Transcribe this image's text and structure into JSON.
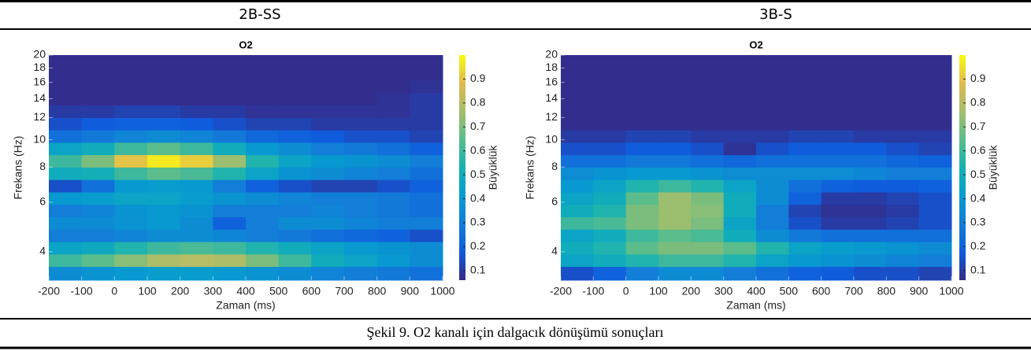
{
  "caption": "Şekil 9. O2 kanalı için dalgacık dönüşümü sonuçları",
  "chart_data": [
    {
      "type": "heatmap",
      "panel_label": "2B-SS",
      "title": "O2",
      "xlabel": "Zaman (ms)",
      "ylabel": "Frekans (Hz)",
      "colorbar_label": "Büyüklük",
      "colormap": "parula",
      "ylog": true,
      "xlim": [
        -200,
        1000
      ],
      "xticks": [
        -200,
        -100,
        0,
        100,
        200,
        300,
        400,
        500,
        600,
        700,
        800,
        900,
        1000
      ],
      "ylim": [
        3.17,
        20
      ],
      "yticks": [
        4,
        6,
        8,
        10,
        12,
        14,
        16,
        18,
        20
      ],
      "clim": [
        0.06,
        1
      ],
      "cticks": [
        0.1,
        0.2,
        0.3,
        0.4,
        0.5,
        0.6,
        0.7,
        0.8,
        0.9
      ],
      "x": [
        -150,
        -50,
        50,
        150,
        250,
        350,
        450,
        550,
        650,
        750,
        850,
        950
      ],
      "y": [
        3.37,
        3.73,
        4.13,
        4.57,
        5.06,
        5.6,
        6.2,
        6.86,
        7.6,
        8.41,
        9.31,
        10.3,
        11.4,
        12.6,
        14,
        15.5,
        17.1,
        19
      ],
      "z": [
        [
          0.35,
          0.38,
          0.4,
          0.42,
          0.42,
          0.4,
          0.38,
          0.35,
          0.32,
          0.3,
          0.28,
          0.25
        ],
        [
          0.6,
          0.65,
          0.72,
          0.78,
          0.8,
          0.78,
          0.7,
          0.6,
          0.5,
          0.45,
          0.4,
          0.35
        ],
        [
          0.45,
          0.48,
          0.55,
          0.6,
          0.62,
          0.6,
          0.55,
          0.5,
          0.45,
          0.4,
          0.38,
          0.35
        ],
        [
          0.3,
          0.3,
          0.32,
          0.35,
          0.35,
          0.33,
          0.3,
          0.28,
          0.25,
          0.22,
          0.2,
          0.15
        ],
        [
          0.35,
          0.35,
          0.38,
          0.4,
          0.35,
          0.2,
          0.3,
          0.35,
          0.35,
          0.32,
          0.3,
          0.3
        ],
        [
          0.3,
          0.32,
          0.38,
          0.4,
          0.38,
          0.3,
          0.3,
          0.3,
          0.32,
          0.3,
          0.28,
          0.25
        ],
        [
          0.4,
          0.42,
          0.45,
          0.45,
          0.42,
          0.38,
          0.35,
          0.32,
          0.3,
          0.3,
          0.28,
          0.25
        ],
        [
          0.15,
          0.25,
          0.4,
          0.42,
          0.4,
          0.3,
          0.2,
          0.15,
          0.12,
          0.12,
          0.15,
          0.2
        ],
        [
          0.5,
          0.52,
          0.6,
          0.65,
          0.62,
          0.55,
          0.45,
          0.38,
          0.35,
          0.32,
          0.3,
          0.25
        ],
        [
          0.6,
          0.7,
          0.9,
          0.97,
          0.92,
          0.75,
          0.55,
          0.45,
          0.4,
          0.38,
          0.35,
          0.3
        ],
        [
          0.45,
          0.5,
          0.6,
          0.65,
          0.6,
          0.5,
          0.4,
          0.35,
          0.3,
          0.28,
          0.25,
          0.2
        ],
        [
          0.25,
          0.28,
          0.32,
          0.35,
          0.32,
          0.28,
          0.22,
          0.2,
          0.18,
          0.15,
          0.15,
          0.12
        ],
        [
          0.15,
          0.18,
          0.2,
          0.2,
          0.18,
          0.15,
          0.12,
          0.12,
          0.1,
          0.1,
          0.1,
          0.1
        ],
        [
          0.1,
          0.1,
          0.12,
          0.12,
          0.1,
          0.1,
          0.08,
          0.08,
          0.08,
          0.08,
          0.08,
          0.1
        ],
        [
          0.07,
          0.07,
          0.07,
          0.07,
          0.07,
          0.07,
          0.07,
          0.07,
          0.07,
          0.07,
          0.08,
          0.1
        ],
        [
          0.07,
          0.07,
          0.07,
          0.07,
          0.07,
          0.07,
          0.07,
          0.07,
          0.07,
          0.07,
          0.07,
          0.08
        ],
        [
          0.07,
          0.07,
          0.07,
          0.07,
          0.07,
          0.07,
          0.07,
          0.07,
          0.07,
          0.07,
          0.07,
          0.07
        ],
        [
          0.07,
          0.07,
          0.07,
          0.07,
          0.07,
          0.07,
          0.07,
          0.07,
          0.07,
          0.07,
          0.07,
          0.07
        ]
      ]
    },
    {
      "type": "heatmap",
      "panel_label": "3B-S",
      "title": "O2",
      "xlabel": "Zaman (ms)",
      "ylabel": "Frekans (Hz)",
      "colorbar_label": "Büyüklük",
      "colormap": "parula",
      "ylog": true,
      "xlim": [
        -200,
        1000
      ],
      "xticks": [
        -200,
        -100,
        0,
        100,
        200,
        300,
        400,
        500,
        600,
        700,
        800,
        900,
        1000
      ],
      "ylim": [
        3.17,
        20
      ],
      "yticks": [
        4,
        6,
        8,
        10,
        12,
        14,
        16,
        18,
        20
      ],
      "clim": [
        0.06,
        1
      ],
      "cticks": [
        0.1,
        0.2,
        0.3,
        0.4,
        0.5,
        0.6,
        0.7,
        0.8,
        0.9
      ],
      "x": [
        -150,
        -50,
        50,
        150,
        250,
        350,
        450,
        550,
        650,
        750,
        850,
        950
      ],
      "y": [
        3.37,
        3.73,
        4.13,
        4.57,
        5.06,
        5.6,
        6.2,
        6.86,
        7.6,
        8.41,
        9.31,
        10.3,
        11.4,
        12.6,
        14,
        15.5,
        17.1,
        19
      ],
      "z": [
        [
          0.15,
          0.2,
          0.3,
          0.35,
          0.35,
          0.3,
          0.25,
          0.2,
          0.18,
          0.15,
          0.15,
          0.12
        ],
        [
          0.45,
          0.5,
          0.55,
          0.6,
          0.6,
          0.55,
          0.45,
          0.4,
          0.38,
          0.35,
          0.32,
          0.3
        ],
        [
          0.5,
          0.55,
          0.65,
          0.7,
          0.7,
          0.65,
          0.55,
          0.45,
          0.42,
          0.4,
          0.38,
          0.35
        ],
        [
          0.45,
          0.5,
          0.6,
          0.65,
          0.62,
          0.5,
          0.35,
          0.28,
          0.25,
          0.25,
          0.25,
          0.25
        ],
        [
          0.6,
          0.62,
          0.7,
          0.75,
          0.7,
          0.45,
          0.3,
          0.15,
          0.1,
          0.1,
          0.12,
          0.15
        ],
        [
          0.5,
          0.55,
          0.7,
          0.75,
          0.72,
          0.5,
          0.3,
          0.12,
          0.08,
          0.08,
          0.1,
          0.15
        ],
        [
          0.45,
          0.5,
          0.65,
          0.75,
          0.7,
          0.5,
          0.35,
          0.2,
          0.1,
          0.1,
          0.12,
          0.15
        ],
        [
          0.4,
          0.45,
          0.55,
          0.6,
          0.55,
          0.45,
          0.35,
          0.25,
          0.2,
          0.18,
          0.18,
          0.2
        ],
        [
          0.35,
          0.38,
          0.4,
          0.4,
          0.38,
          0.35,
          0.35,
          0.35,
          0.35,
          0.33,
          0.3,
          0.3
        ],
        [
          0.25,
          0.25,
          0.28,
          0.28,
          0.25,
          0.22,
          0.25,
          0.25,
          0.25,
          0.25,
          0.22,
          0.2
        ],
        [
          0.15,
          0.15,
          0.18,
          0.18,
          0.15,
          0.08,
          0.15,
          0.18,
          0.18,
          0.18,
          0.15,
          0.12
        ],
        [
          0.1,
          0.1,
          0.12,
          0.12,
          0.1,
          0.1,
          0.1,
          0.12,
          0.12,
          0.1,
          0.1,
          0.1
        ],
        [
          0.07,
          0.07,
          0.07,
          0.07,
          0.07,
          0.07,
          0.07,
          0.07,
          0.07,
          0.07,
          0.07,
          0.07
        ],
        [
          0.07,
          0.07,
          0.07,
          0.07,
          0.07,
          0.07,
          0.07,
          0.07,
          0.07,
          0.07,
          0.07,
          0.07
        ],
        [
          0.07,
          0.07,
          0.07,
          0.07,
          0.07,
          0.07,
          0.07,
          0.07,
          0.07,
          0.07,
          0.07,
          0.07
        ],
        [
          0.07,
          0.07,
          0.07,
          0.07,
          0.07,
          0.07,
          0.07,
          0.07,
          0.07,
          0.07,
          0.07,
          0.07
        ],
        [
          0.07,
          0.07,
          0.07,
          0.07,
          0.07,
          0.07,
          0.07,
          0.07,
          0.07,
          0.07,
          0.07,
          0.07
        ],
        [
          0.07,
          0.07,
          0.07,
          0.07,
          0.07,
          0.07,
          0.07,
          0.07,
          0.07,
          0.07,
          0.07,
          0.07
        ]
      ]
    }
  ]
}
